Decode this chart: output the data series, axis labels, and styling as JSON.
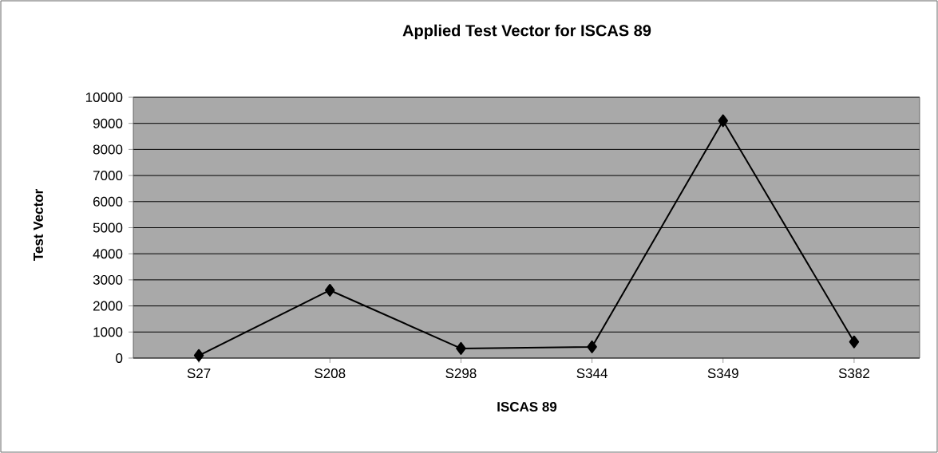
{
  "chart_data": {
    "type": "line",
    "title": "Applied Test Vector for ISCAS 89",
    "xlabel": "ISCAS 89",
    "ylabel": "Test Vector",
    "categories": [
      "S27",
      "S208",
      "S298",
      "S344",
      "S349",
      "S382"
    ],
    "series": [
      {
        "color": "#000000",
        "values": [
          100,
          2600,
          370,
          430,
          9100,
          620
        ]
      }
    ],
    "ylim": [
      0,
      10000
    ],
    "yticks": [
      0,
      1000,
      2000,
      3000,
      4000,
      5000,
      6000,
      7000,
      8000,
      9000,
      10000
    ],
    "grid": "y",
    "marker": "diamond",
    "line_style": "solid"
  }
}
